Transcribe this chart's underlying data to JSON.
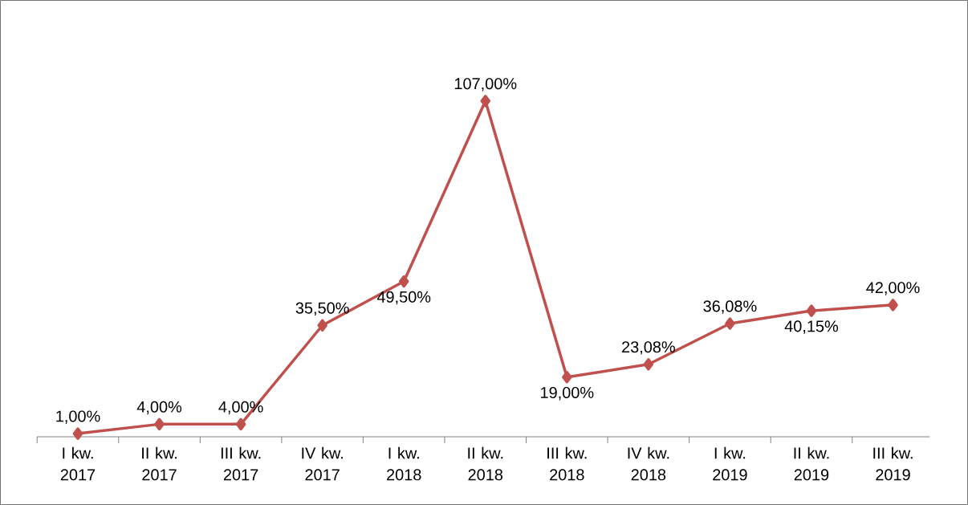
{
  "chart_data": {
    "type": "line",
    "categories": [
      "I kw. 2017",
      "II kw. 2017",
      "III kw. 2017",
      "IV kw. 2017",
      "I kw. 2018",
      "II kw. 2018",
      "III kw. 2018",
      "IV kw. 2018",
      "I kw. 2019",
      "II kw. 2019",
      "III kw. 2019"
    ],
    "series": [
      {
        "color": "#c0504d",
        "values": [
          1.0,
          4.0,
          4.0,
          35.5,
          49.5,
          107.0,
          19.0,
          23.08,
          36.08,
          40.15,
          42.0
        ],
        "value_labels": [
          "1,00%",
          "4,00%",
          "4,00%",
          "35,50%",
          "49,50%",
          "107,00%",
          "19,00%",
          "23,08%",
          "36,08%",
          "40,15%",
          "42,00%"
        ]
      }
    ],
    "marker": "diamond",
    "line_style": "solid"
  }
}
